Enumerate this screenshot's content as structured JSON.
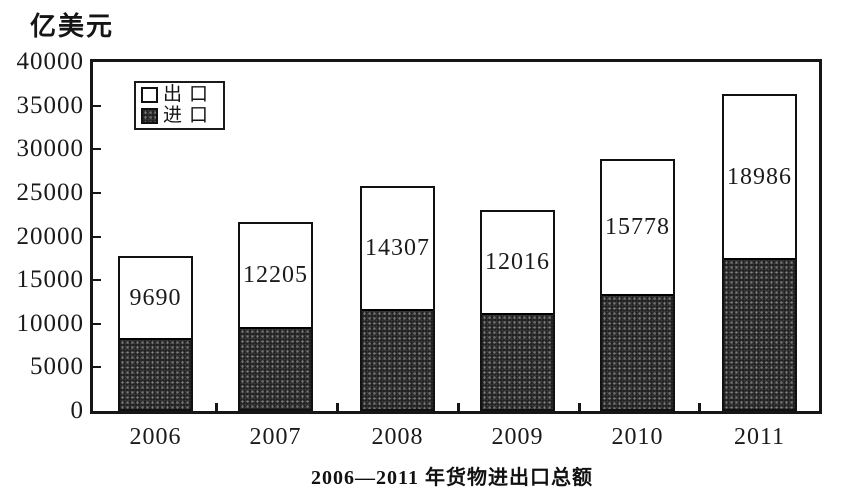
{
  "unit_label": "亿美元",
  "caption": "2006—2011 年货物进出口总额",
  "legend": {
    "items": [
      {
        "label": "出口",
        "fill": "white"
      },
      {
        "label": "进口",
        "fill": "dark-stipple"
      }
    ]
  },
  "chart_data": {
    "type": "bar",
    "stacked": true,
    "title": "2006—2011 年货物进出口总额",
    "ylabel": "亿美元",
    "categories": [
      "2006",
      "2007",
      "2008",
      "2009",
      "2010",
      "2011"
    ],
    "series": [
      {
        "name": "出口",
        "fill": "white",
        "values": [
          9690,
          12205,
          14307,
          12016,
          15778,
          18986
        ],
        "value_labels_shown": true
      },
      {
        "name": "进口",
        "fill": "dark-stipple",
        "values": [
          8100,
          9450,
          11450,
          11000,
          13150,
          17300
        ],
        "value_labels_shown": false,
        "estimated": true
      }
    ],
    "bar_value_labels": [
      "9690",
      "12205",
      "14307",
      "12016",
      "15778",
      "18986"
    ],
    "ylim": [
      0,
      40000
    ],
    "yticks": [
      0,
      5000,
      10000,
      15000,
      20000,
      25000,
      30000,
      35000,
      40000
    ],
    "grid": false,
    "legend_position": "top-left-inside"
  },
  "colors": {
    "export_fill": "#ffffff",
    "import_fill": "#181818",
    "line": "#161616",
    "background": "#ffffff",
    "text": "#111111"
  }
}
